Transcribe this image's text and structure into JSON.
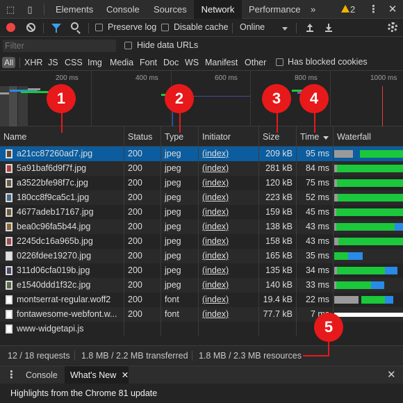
{
  "tabs": {
    "items": [
      "Elements",
      "Console",
      "Sources",
      "Network",
      "Performance"
    ],
    "more": "»",
    "warnings": "2",
    "menu": "⋮",
    "close": "✕"
  },
  "toolbar": {
    "preserve_log": "Preserve log",
    "disable_cache": "Disable cache",
    "throttle": "Online"
  },
  "filter": {
    "placeholder": "Filter",
    "hide_data_urls": "Hide data URLs"
  },
  "types": {
    "all": "All",
    "items": [
      "XHR",
      "JS",
      "CSS",
      "Img",
      "Media",
      "Font",
      "Doc",
      "WS",
      "Manifest",
      "Other"
    ],
    "blocked_cookies": "Has blocked cookies"
  },
  "overview": {
    "ticks": [
      "200 ms",
      "400 ms",
      "600 ms",
      "800 ms",
      "1000 ms"
    ]
  },
  "markers": [
    "1",
    "2",
    "3",
    "4",
    "5"
  ],
  "table": {
    "headers": [
      "Name",
      "Status",
      "Type",
      "Initiator",
      "Size",
      "Time",
      "Waterfall"
    ],
    "rows": [
      {
        "name": "a21cc87260ad7.jpg",
        "status": "200",
        "type": "jpeg",
        "initiator": "(index)",
        "size": "209 kB",
        "time": "95 ms"
      },
      {
        "name": "5a91baf6d9f7f.jpg",
        "status": "200",
        "type": "jpeg",
        "initiator": "(index)",
        "size": "281 kB",
        "time": "84 ms"
      },
      {
        "name": "a3522bfe98f7c.jpg",
        "status": "200",
        "type": "jpeg",
        "initiator": "(index)",
        "size": "120 kB",
        "time": "75 ms"
      },
      {
        "name": "180cc8f9ca5c1.jpg",
        "status": "200",
        "type": "jpeg",
        "initiator": "(index)",
        "size": "223 kB",
        "time": "52 ms"
      },
      {
        "name": "4677adeb17167.jpg",
        "status": "200",
        "type": "jpeg",
        "initiator": "(index)",
        "size": "159 kB",
        "time": "45 ms"
      },
      {
        "name": "bea0c96fa5b44.jpg",
        "status": "200",
        "type": "jpeg",
        "initiator": "(index)",
        "size": "138 kB",
        "time": "43 ms"
      },
      {
        "name": "2245dc16a965b.jpg",
        "status": "200",
        "type": "jpeg",
        "initiator": "(index)",
        "size": "158 kB",
        "time": "43 ms"
      },
      {
        "name": "0226fdee19270.jpg",
        "status": "200",
        "type": "jpeg",
        "initiator": "(index)",
        "size": "165 kB",
        "time": "35 ms"
      },
      {
        "name": "311d06cfa019b.jpg",
        "status": "200",
        "type": "jpeg",
        "initiator": "(index)",
        "size": "135 kB",
        "time": "34 ms"
      },
      {
        "name": "e1540ddd1f32c.jpg",
        "status": "200",
        "type": "jpeg",
        "initiator": "(index)",
        "size": "140 kB",
        "time": "33 ms"
      },
      {
        "name": "montserrat-regular.woff2",
        "status": "200",
        "type": "font",
        "initiator": "(index)",
        "size": "19.4 kB",
        "time": "22 ms"
      },
      {
        "name": "fontawesome-webfont.w...",
        "status": "200",
        "type": "font",
        "initiator": "(index)",
        "size": "77.7 kB",
        "time": "7 ms"
      },
      {
        "name": "www-widgetapi.js",
        "status": "",
        "type": "",
        "initiator": "",
        "size": "",
        "time": ""
      }
    ]
  },
  "summary": {
    "requests": "12 / 18 requests",
    "transferred": "1.8 MB / 2.2 MB transferred",
    "resources": "1.8 MB / 2.3 MB resources"
  },
  "drawer": {
    "tabs": [
      "Console",
      "What's New"
    ],
    "close": "✕",
    "body": "Highlights from the Chrome 81 update"
  },
  "colors": {
    "selected_row": "#0b5d9f",
    "waterfall_green": "#1bc73b",
    "waterfall_blue": "#2a8ae8",
    "marker_red": "#e8191a",
    "record_red": "#ee4444"
  }
}
